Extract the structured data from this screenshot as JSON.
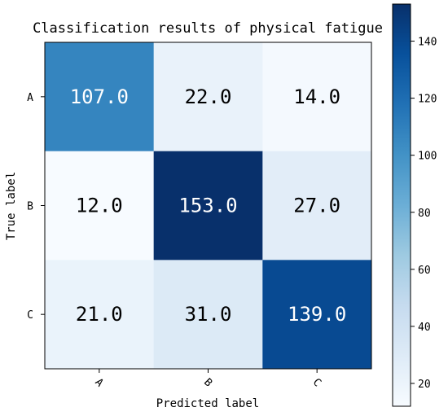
{
  "chart_data": {
    "type": "heatmap",
    "title": "Classification results of physical fatigue",
    "xlabel": "Predicted label",
    "ylabel": "True label",
    "x_categories": [
      "A",
      "B",
      "C"
    ],
    "y_categories": [
      "A",
      "B",
      "C"
    ],
    "values": [
      [
        107.0,
        22.0,
        14.0
      ],
      [
        12.0,
        153.0,
        27.0
      ],
      [
        21.0,
        31.0,
        139.0
      ]
    ],
    "cell_labels": [
      [
        "107.0",
        "22.0",
        "14.0"
      ],
      [
        "12.0",
        "153.0",
        "27.0"
      ],
      [
        "21.0",
        "31.0",
        "139.0"
      ]
    ],
    "colormap": "Blues",
    "color_range": [
      12,
      153
    ],
    "colorbar_ticks": [
      20,
      40,
      60,
      80,
      100,
      120,
      140
    ],
    "colorbar_tick_labels": [
      "20",
      "40",
      "60",
      "80",
      "100",
      "120",
      "140"
    ],
    "x_tick_rotation_deg": 45,
    "grid": false,
    "colors": {
      "low": "#f7fbff",
      "high": "#08306b",
      "text_dark": "#000000",
      "text_light": "#ffffff"
    }
  }
}
